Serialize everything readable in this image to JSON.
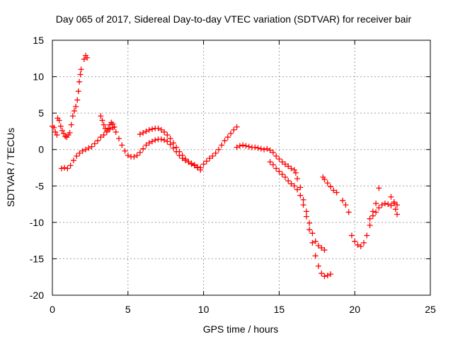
{
  "chart_data": {
    "type": "scatter",
    "title": "Day 065 of 2017, Sidereal Day-to-day VTEC variation (SDTVAR) for receiver bair",
    "xlabel": "GPS time / hours",
    "ylabel": "SDTVAR / TECUs",
    "xlim": [
      0,
      25
    ],
    "ylim": [
      -20,
      15
    ],
    "x_ticks": [
      "0",
      "5",
      "10",
      "15",
      "20",
      "25"
    ],
    "y_ticks": [
      "15",
      "10",
      "5",
      "0",
      "-5",
      "-10",
      "-15",
      "-20"
    ],
    "x_tick_values": [
      0,
      5,
      10,
      15,
      20,
      25
    ],
    "y_tick_values": [
      15,
      10,
      5,
      0,
      -5,
      -10,
      -15,
      -20
    ],
    "grid": true,
    "legend": "none",
    "marker": "plus",
    "color": "#ff0000",
    "series": [
      {
        "points": [
          [
            0.0,
            3.2
          ],
          [
            0.1,
            3.0
          ],
          [
            0.2,
            2.4
          ],
          [
            0.3,
            2.0
          ],
          [
            0.35,
            4.3
          ],
          [
            0.45,
            4.0
          ],
          [
            0.55,
            3.2
          ],
          [
            0.65,
            2.6
          ],
          [
            0.75,
            2.2
          ],
          [
            0.85,
            1.8
          ],
          [
            0.95,
            1.7
          ],
          [
            1.05,
            2.0
          ],
          [
            1.15,
            2.3
          ],
          [
            1.25,
            3.4
          ],
          [
            1.35,
            4.6
          ],
          [
            1.45,
            5.3
          ],
          [
            1.55,
            5.9
          ],
          [
            1.65,
            6.8
          ],
          [
            1.72,
            8.0
          ],
          [
            1.78,
            9.3
          ],
          [
            1.85,
            10.3
          ],
          [
            1.9,
            11.0
          ],
          [
            2.1,
            12.4
          ],
          [
            2.2,
            12.9
          ],
          [
            2.3,
            12.6
          ]
        ]
      },
      {
        "points": [
          [
            0.6,
            -2.6
          ],
          [
            0.8,
            -2.5
          ],
          [
            1.0,
            -2.6
          ],
          [
            1.2,
            -2.2
          ],
          [
            1.4,
            -1.5
          ],
          [
            1.6,
            -0.9
          ],
          [
            1.8,
            -0.5
          ],
          [
            2.0,
            -0.2
          ],
          [
            2.2,
            0.0
          ],
          [
            2.4,
            0.2
          ],
          [
            2.6,
            0.4
          ],
          [
            2.8,
            0.8
          ],
          [
            3.0,
            1.2
          ],
          [
            3.2,
            1.7
          ],
          [
            3.4,
            2.0
          ],
          [
            3.6,
            2.4
          ],
          [
            3.8,
            2.8
          ],
          [
            4.0,
            3.0
          ],
          [
            4.2,
            2.4
          ],
          [
            4.4,
            1.5
          ],
          [
            4.6,
            0.6
          ],
          [
            4.8,
            -0.2
          ],
          [
            5.0,
            -0.8
          ],
          [
            5.2,
            -1.0
          ],
          [
            5.4,
            -1.0
          ],
          [
            5.6,
            -0.8
          ],
          [
            5.8,
            -0.4
          ],
          [
            6.0,
            0.1
          ],
          [
            6.2,
            0.6
          ],
          [
            6.4,
            0.9
          ],
          [
            6.6,
            1.1
          ],
          [
            6.8,
            1.3
          ],
          [
            7.0,
            1.4
          ],
          [
            7.2,
            1.4
          ],
          [
            7.4,
            1.3
          ],
          [
            7.6,
            1.1
          ],
          [
            7.8,
            0.7
          ],
          [
            8.0,
            0.2
          ],
          [
            8.2,
            -0.3
          ],
          [
            8.4,
            -0.8
          ],
          [
            8.6,
            -1.2
          ],
          [
            8.8,
            -1.5
          ],
          [
            9.0,
            -1.7
          ],
          [
            9.2,
            -1.9
          ],
          [
            9.4,
            -2.1
          ],
          [
            9.6,
            -2.4
          ],
          [
            9.8,
            -2.5
          ],
          [
            10.0,
            -2.0
          ],
          [
            10.2,
            -1.6
          ],
          [
            10.4,
            -1.2
          ],
          [
            10.6,
            -0.9
          ],
          [
            10.8,
            -0.5
          ],
          [
            11.0,
            0.0
          ],
          [
            11.2,
            0.6
          ],
          [
            11.4,
            1.2
          ],
          [
            11.6,
            1.7
          ],
          [
            11.8,
            2.2
          ],
          [
            12.0,
            2.7
          ],
          [
            12.2,
            3.1
          ]
        ]
      },
      {
        "points": [
          [
            3.2,
            4.6
          ],
          [
            3.3,
            4.0
          ],
          [
            3.4,
            3.4
          ],
          [
            3.5,
            2.9
          ],
          [
            3.6,
            2.6
          ],
          [
            3.7,
            2.9
          ],
          [
            3.8,
            3.4
          ],
          [
            3.9,
            3.7
          ],
          [
            4.0,
            3.5
          ],
          [
            4.1,
            3.1
          ]
        ]
      },
      {
        "points": [
          [
            5.8,
            2.1
          ],
          [
            6.0,
            2.3
          ],
          [
            6.2,
            2.5
          ],
          [
            6.4,
            2.7
          ],
          [
            6.6,
            2.8
          ],
          [
            6.8,
            2.9
          ],
          [
            7.0,
            2.9
          ],
          [
            7.2,
            2.7
          ],
          [
            7.4,
            2.4
          ],
          [
            7.6,
            2.0
          ],
          [
            7.8,
            1.5
          ],
          [
            8.0,
            0.9
          ],
          [
            8.2,
            0.3
          ],
          [
            8.4,
            -0.3
          ],
          [
            8.6,
            -0.8
          ],
          [
            8.8,
            -1.3
          ],
          [
            9.0,
            -1.7
          ],
          [
            9.2,
            -2.0
          ],
          [
            9.4,
            -2.2
          ],
          [
            9.6,
            -2.5
          ],
          [
            9.8,
            -2.8
          ]
        ]
      },
      {
        "points": [
          [
            12.2,
            0.3
          ],
          [
            12.4,
            0.5
          ],
          [
            12.6,
            0.6
          ],
          [
            12.8,
            0.5
          ],
          [
            13.0,
            0.4
          ],
          [
            13.2,
            0.3
          ],
          [
            13.4,
            0.3
          ],
          [
            13.6,
            0.2
          ],
          [
            13.8,
            0.1
          ],
          [
            14.0,
            0.0
          ],
          [
            14.2,
            0.1
          ],
          [
            14.4,
            -0.1
          ],
          [
            14.6,
            -0.4
          ],
          [
            14.8,
            -0.9
          ],
          [
            15.0,
            -1.3
          ],
          [
            15.2,
            -1.7
          ],
          [
            15.4,
            -2.0
          ],
          [
            15.6,
            -2.3
          ],
          [
            15.8,
            -2.6
          ],
          [
            16.0,
            -2.8
          ],
          [
            16.1,
            -3.2
          ],
          [
            16.2,
            -4.0
          ],
          [
            16.4,
            -5.2
          ],
          [
            16.6,
            -6.9
          ],
          [
            16.8,
            -8.5
          ],
          [
            17.0,
            -10.1
          ],
          [
            17.2,
            -11.5
          ],
          [
            17.4,
            -12.6
          ],
          [
            17.6,
            -13.2
          ],
          [
            17.8,
            -13.5
          ],
          [
            18.0,
            -13.8
          ]
        ]
      },
      {
        "points": [
          [
            14.4,
            -1.7
          ],
          [
            14.6,
            -2.1
          ],
          [
            14.8,
            -2.6
          ],
          [
            15.0,
            -3.0
          ],
          [
            15.2,
            -3.4
          ],
          [
            15.4,
            -3.8
          ],
          [
            15.6,
            -4.3
          ],
          [
            15.8,
            -4.7
          ],
          [
            16.0,
            -5.0
          ],
          [
            16.2,
            -5.5
          ],
          [
            16.4,
            -6.3
          ],
          [
            16.6,
            -7.6
          ],
          [
            16.8,
            -9.2
          ],
          [
            17.0,
            -11.0
          ],
          [
            17.2,
            -12.8
          ],
          [
            17.4,
            -14.6
          ],
          [
            17.6,
            -16.0
          ],
          [
            17.8,
            -17.0
          ],
          [
            18.0,
            -17.4
          ],
          [
            18.2,
            -17.3
          ],
          [
            18.4,
            -17.1
          ]
        ]
      },
      {
        "points": [
          [
            17.9,
            -3.8
          ],
          [
            18.0,
            -4.1
          ],
          [
            18.2,
            -4.6
          ],
          [
            18.4,
            -5.1
          ],
          [
            18.6,
            -5.6
          ],
          [
            18.8,
            -5.9
          ]
        ]
      },
      {
        "points": [
          [
            19.2,
            -7.0
          ],
          [
            19.4,
            -7.6
          ],
          [
            19.6,
            -8.6
          ]
        ]
      },
      {
        "points": [
          [
            19.8,
            -11.8
          ],
          [
            20.0,
            -12.6
          ],
          [
            20.2,
            -13.1
          ],
          [
            20.4,
            -13.3
          ],
          [
            20.6,
            -12.8
          ],
          [
            20.8,
            -11.8
          ],
          [
            21.0,
            -10.4
          ],
          [
            21.2,
            -9.1
          ],
          [
            21.4,
            -8.6
          ],
          [
            21.6,
            -8.0
          ],
          [
            21.8,
            -7.6
          ],
          [
            22.0,
            -7.4
          ],
          [
            22.2,
            -7.5
          ],
          [
            22.4,
            -7.7
          ],
          [
            22.6,
            -7.4
          ],
          [
            22.8,
            -7.6
          ]
        ]
      },
      {
        "points": [
          [
            21.0,
            -9.5
          ],
          [
            21.2,
            -8.5
          ],
          [
            21.4,
            -7.4
          ],
          [
            21.6,
            -5.3
          ]
        ]
      },
      {
        "points": [
          [
            22.4,
            -6.5
          ],
          [
            22.6,
            -7.2
          ],
          [
            22.7,
            -8.2
          ],
          [
            22.8,
            -8.9
          ]
        ]
      }
    ]
  }
}
